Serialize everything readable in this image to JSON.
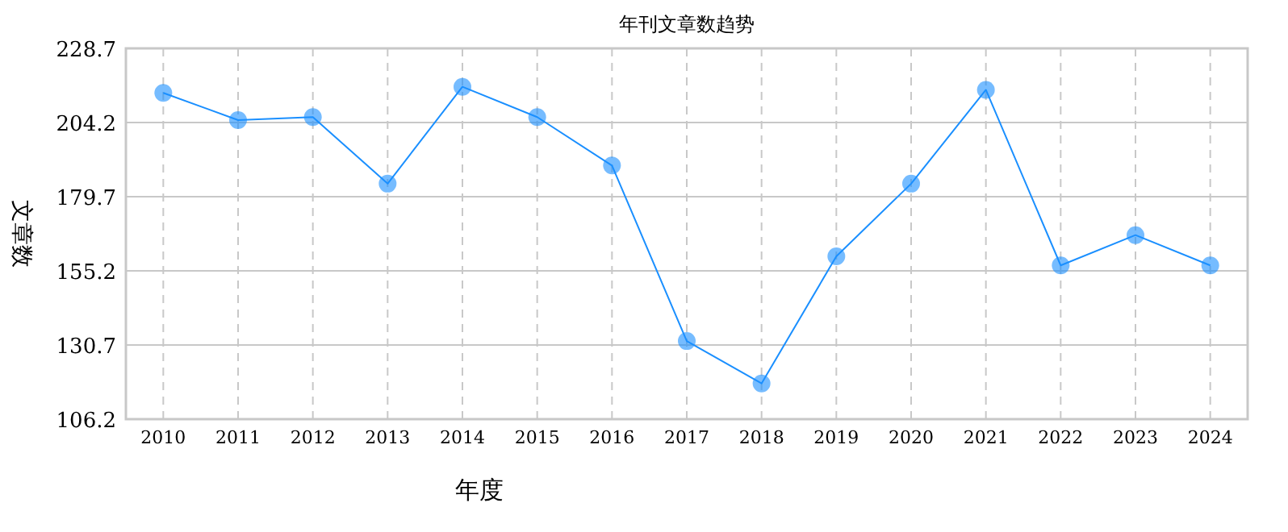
{
  "chart_data": {
    "type": "line",
    "title": "年刊文章数趋势",
    "xlabel": "年度",
    "ylabel": "文章数",
    "categories": [
      "2010",
      "2011",
      "2012",
      "2013",
      "2014",
      "2015",
      "2016",
      "2017",
      "2018",
      "2019",
      "2020",
      "2021",
      "2022",
      "2023",
      "2024"
    ],
    "series": [
      {
        "color": "#1a8fff",
        "values": [
          214,
          205,
          206,
          184,
          216,
          206,
          190,
          132,
          118,
          160,
          184,
          215,
          157,
          167,
          157
        ]
      }
    ],
    "ylim": [
      106.2,
      228.7
    ],
    "yticks": [
      106.2,
      130.7,
      155.2,
      179.7,
      204.2,
      228.7
    ],
    "grid": true,
    "marker": "circle",
    "line_style": "solid"
  }
}
